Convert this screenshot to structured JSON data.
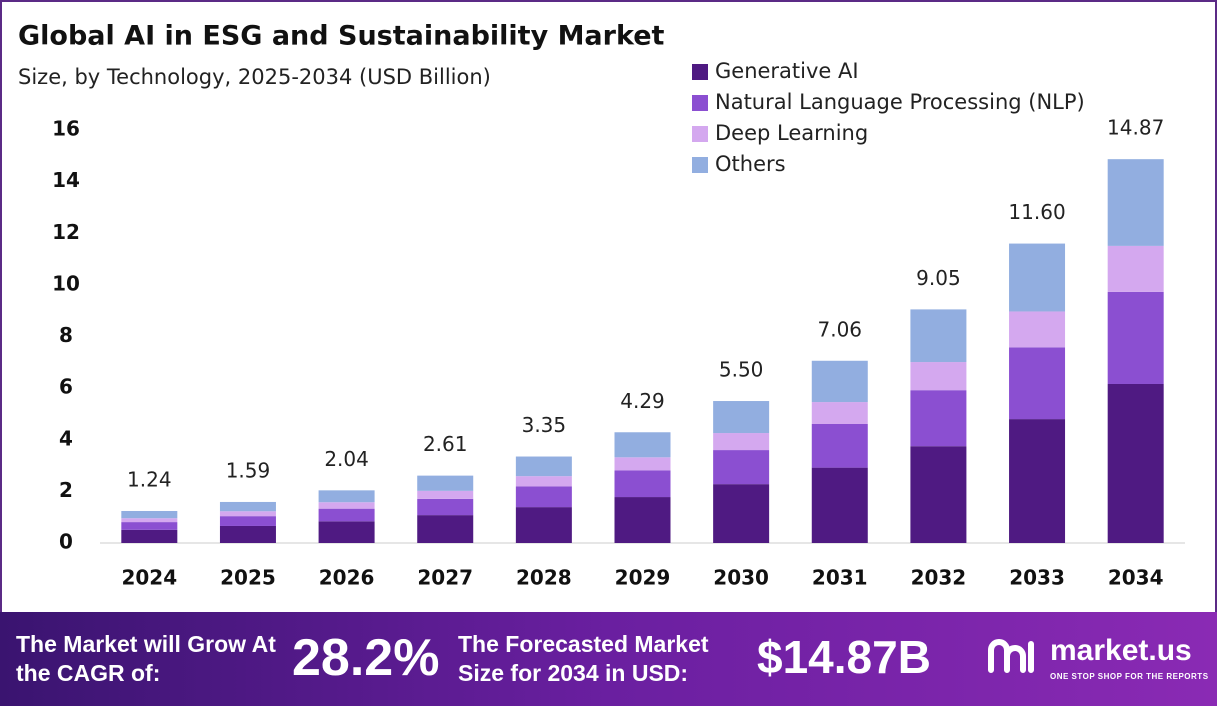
{
  "chart_data": {
    "type": "stacked_bar",
    "title": "Global AI in ESG and Sustainability  Market",
    "subtitle": "Size, by Technology, 2025-2034 (USD Billion)",
    "categories": [
      "2024",
      "2025",
      "2026",
      "2027",
      "2028",
      "2029",
      "2030",
      "2031",
      "2032",
      "2033",
      "2034"
    ],
    "series": [
      {
        "name": "Generative AI",
        "color": "#4f1a82",
        "values": [
          0.51,
          0.66,
          0.84,
          1.08,
          1.39,
          1.78,
          2.28,
          2.92,
          3.75,
          4.8,
          6.16
        ]
      },
      {
        "name": "Natural Language Processing (NLP)",
        "color": "#8b4fd1",
        "values": [
          0.3,
          0.38,
          0.49,
          0.63,
          0.8,
          1.03,
          1.32,
          1.69,
          2.17,
          2.78,
          3.57
        ]
      },
      {
        "name": "Deep Learning",
        "color": "#d4a8ef",
        "values": [
          0.15,
          0.19,
          0.25,
          0.31,
          0.4,
          0.51,
          0.66,
          0.85,
          1.09,
          1.39,
          1.78
        ]
      },
      {
        "name": "Others",
        "color": "#92aee0",
        "values": [
          0.28,
          0.36,
          0.46,
          0.59,
          0.76,
          0.97,
          1.24,
          1.6,
          2.04,
          2.63,
          3.36
        ]
      }
    ],
    "totals": [
      1.24,
      1.59,
      2.04,
      2.61,
      3.35,
      4.29,
      5.5,
      7.06,
      9.05,
      11.6,
      14.87
    ],
    "total_labels": [
      "1.24",
      "1.59",
      "2.04",
      "2.61",
      "3.35",
      "4.29",
      "5.50",
      "7.06",
      "9.05",
      "11.60",
      "14.87"
    ],
    "ylim": [
      0,
      16
    ],
    "yticks": [
      0,
      2,
      4,
      6,
      8,
      10,
      12,
      14,
      16
    ],
    "grid": false,
    "legend": "top-right"
  },
  "footer": {
    "cagr_label": "The Market will Grow At the CAGR of:",
    "cagr_value": "28.2%",
    "forecast_label": "The Forecasted Market Size for 2034 in USD:",
    "forecast_value": "$14.87B",
    "brand": "market.us",
    "tagline": "ONE STOP SHOP FOR THE REPORTS"
  }
}
